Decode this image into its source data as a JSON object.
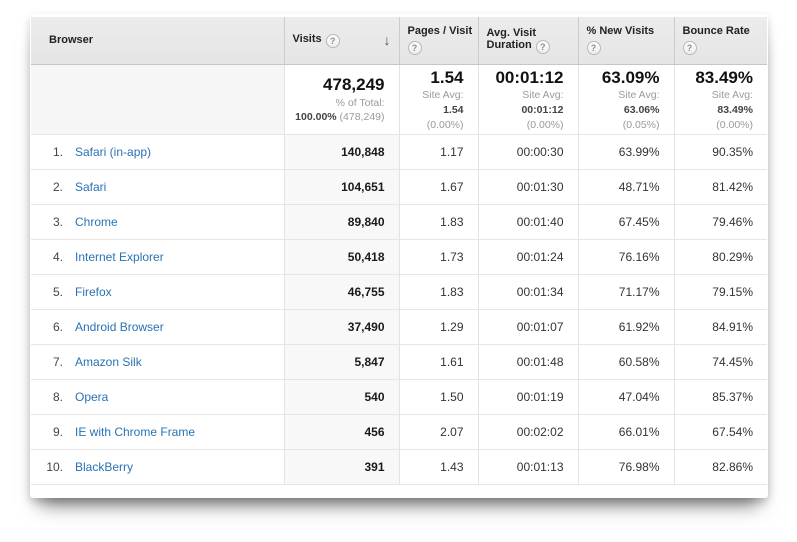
{
  "icons": {
    "help": "?",
    "sort_desc": "↓"
  },
  "colors": {
    "link_blue": "#2a72b5",
    "header_bg": "#e8e8e8",
    "sorted_column_bg": "#f8f8f8"
  },
  "table": {
    "columns": [
      {
        "label": "Browser",
        "has_help": false,
        "sorted": false
      },
      {
        "label": "Visits",
        "has_help": true,
        "sorted": true
      },
      {
        "label": "Pages / Visit",
        "has_help": true,
        "sorted": false
      },
      {
        "label": "Avg. Visit Duration",
        "has_help": true,
        "sorted": false
      },
      {
        "label": "% New Visits",
        "has_help": true,
        "sorted": false
      },
      {
        "label": "Bounce Rate",
        "has_help": true,
        "sorted": false
      }
    ],
    "summary": {
      "visits": {
        "value": "478,249",
        "sub_label": "% of Total:",
        "sub_value": "100.00%",
        "sub_paren": "(478,249)"
      },
      "pages_per_visit": {
        "value": "1.54",
        "sub_label": "Site Avg:",
        "sub_value": "1.54",
        "sub_paren": "(0.00%)"
      },
      "avg_visit_duration": {
        "value": "00:01:12",
        "sub_label": "Site Avg:",
        "sub_value": "00:01:12",
        "sub_paren": "(0.00%)"
      },
      "pct_new_visits": {
        "value": "63.09%",
        "sub_label": "Site Avg:",
        "sub_value": "63.06%",
        "sub_paren": "(0.05%)"
      },
      "bounce_rate": {
        "value": "83.49%",
        "sub_label": "Site Avg:",
        "sub_value": "83.49%",
        "sub_paren": "(0.00%)"
      }
    },
    "rows": [
      {
        "rank": "1.",
        "browser": "Safari (in-app)",
        "visits": "140,848",
        "pages_per_visit": "1.17",
        "avg_visit_duration": "00:00:30",
        "pct_new_visits": "63.99%",
        "bounce_rate": "90.35%"
      },
      {
        "rank": "2.",
        "browser": "Safari",
        "visits": "104,651",
        "pages_per_visit": "1.67",
        "avg_visit_duration": "00:01:30",
        "pct_new_visits": "48.71%",
        "bounce_rate": "81.42%"
      },
      {
        "rank": "3.",
        "browser": "Chrome",
        "visits": "89,840",
        "pages_per_visit": "1.83",
        "avg_visit_duration": "00:01:40",
        "pct_new_visits": "67.45%",
        "bounce_rate": "79.46%"
      },
      {
        "rank": "4.",
        "browser": "Internet Explorer",
        "visits": "50,418",
        "pages_per_visit": "1.73",
        "avg_visit_duration": "00:01:24",
        "pct_new_visits": "76.16%",
        "bounce_rate": "80.29%"
      },
      {
        "rank": "5.",
        "browser": "Firefox",
        "visits": "46,755",
        "pages_per_visit": "1.83",
        "avg_visit_duration": "00:01:34",
        "pct_new_visits": "71.17%",
        "bounce_rate": "79.15%"
      },
      {
        "rank": "6.",
        "browser": "Android Browser",
        "visits": "37,490",
        "pages_per_visit": "1.29",
        "avg_visit_duration": "00:01:07",
        "pct_new_visits": "61.92%",
        "bounce_rate": "84.91%"
      },
      {
        "rank": "7.",
        "browser": "Amazon Silk",
        "visits": "5,847",
        "pages_per_visit": "1.61",
        "avg_visit_duration": "00:01:48",
        "pct_new_visits": "60.58%",
        "bounce_rate": "74.45%"
      },
      {
        "rank": "8.",
        "browser": "Opera",
        "visits": "540",
        "pages_per_visit": "1.50",
        "avg_visit_duration": "00:01:19",
        "pct_new_visits": "47.04%",
        "bounce_rate": "85.37%"
      },
      {
        "rank": "9.",
        "browser": "IE with Chrome Frame",
        "visits": "456",
        "pages_per_visit": "2.07",
        "avg_visit_duration": "00:02:02",
        "pct_new_visits": "66.01%",
        "bounce_rate": "67.54%"
      },
      {
        "rank": "10.",
        "browser": "BlackBerry",
        "visits": "391",
        "pages_per_visit": "1.43",
        "avg_visit_duration": "00:01:13",
        "pct_new_visits": "76.98%",
        "bounce_rate": "82.86%"
      }
    ]
  }
}
